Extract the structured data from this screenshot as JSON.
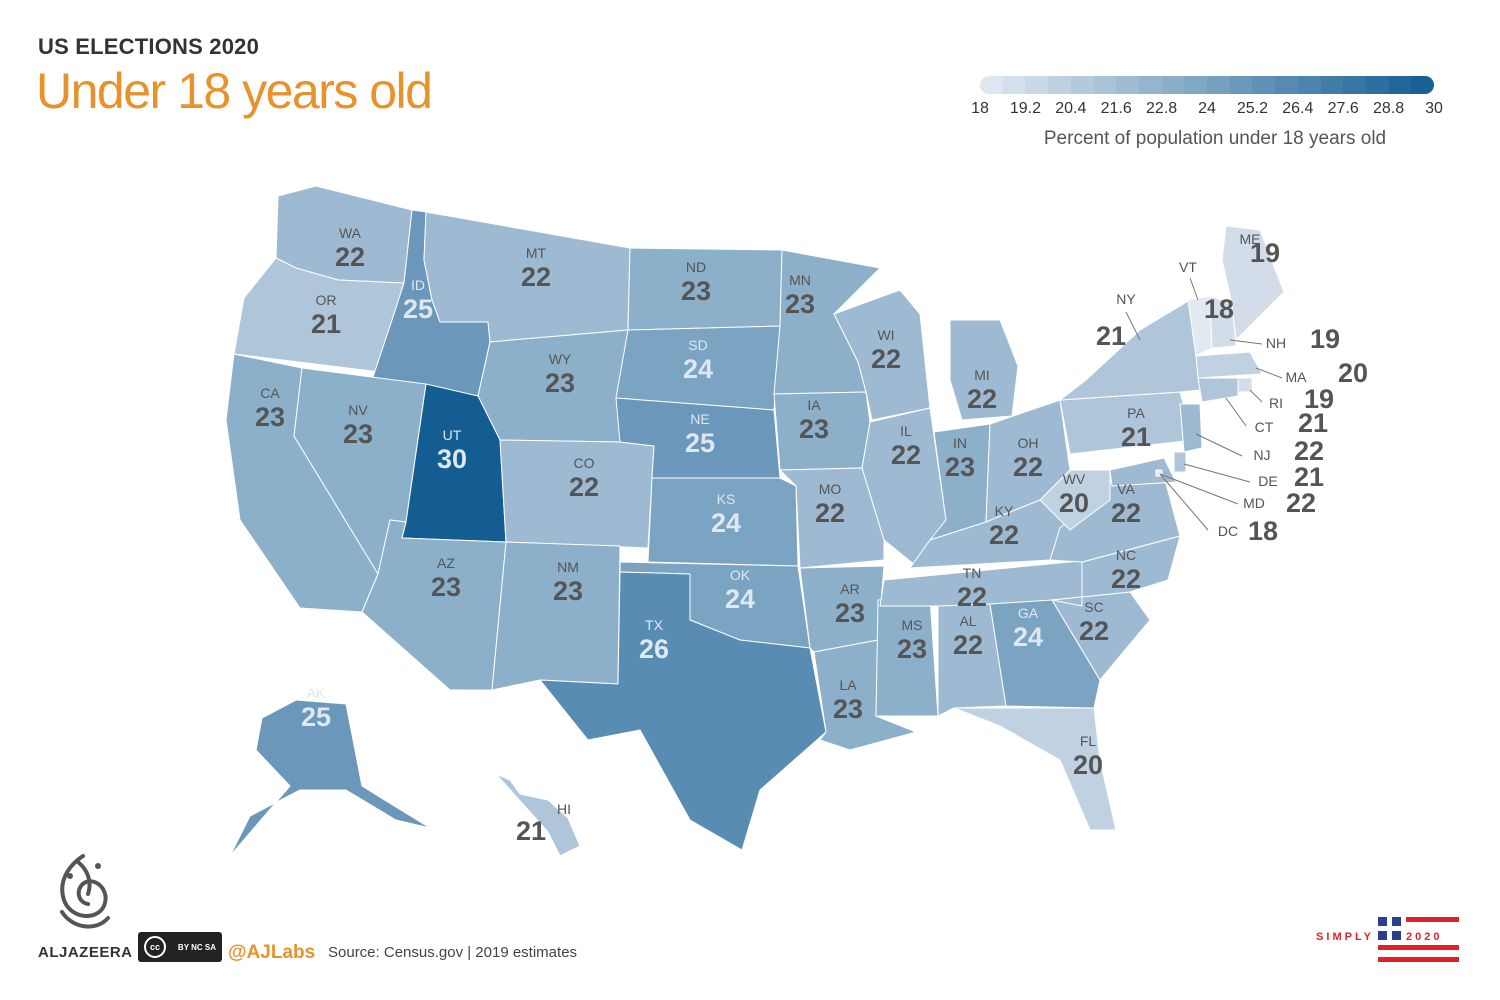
{
  "header": {
    "kicker": "US ELECTIONS 2020",
    "title": "Under 18 years old"
  },
  "legend": {
    "ticks": [
      "18",
      "19.2",
      "20.4",
      "21.6",
      "22.8",
      "24",
      "25.2",
      "26.4",
      "27.6",
      "28.8",
      "30"
    ],
    "caption": "Percent of population under 18 years old",
    "min_color": "#e3e9f1",
    "max_color": "#135d93",
    "range": [
      18,
      30
    ]
  },
  "chart_data": {
    "type": "choropleth",
    "range": [
      18,
      30
    ],
    "states": [
      {
        "abbr": "WA",
        "value": 22
      },
      {
        "abbr": "OR",
        "value": 21
      },
      {
        "abbr": "CA",
        "value": 23
      },
      {
        "abbr": "ID",
        "value": 25
      },
      {
        "abbr": "NV",
        "value": 23
      },
      {
        "abbr": "MT",
        "value": 22
      },
      {
        "abbr": "WY",
        "value": 23
      },
      {
        "abbr": "UT",
        "value": 30
      },
      {
        "abbr": "AZ",
        "value": 23
      },
      {
        "abbr": "CO",
        "value": 22
      },
      {
        "abbr": "NM",
        "value": 23
      },
      {
        "abbr": "ND",
        "value": 23
      },
      {
        "abbr": "SD",
        "value": 24
      },
      {
        "abbr": "NE",
        "value": 25
      },
      {
        "abbr": "KS",
        "value": 24
      },
      {
        "abbr": "OK",
        "value": 24
      },
      {
        "abbr": "TX",
        "value": 26
      },
      {
        "abbr": "MN",
        "value": 23
      },
      {
        "abbr": "IA",
        "value": 23
      },
      {
        "abbr": "MO",
        "value": 22
      },
      {
        "abbr": "AR",
        "value": 23
      },
      {
        "abbr": "LA",
        "value": 23
      },
      {
        "abbr": "WI",
        "value": 22
      },
      {
        "abbr": "IL",
        "value": 22
      },
      {
        "abbr": "MS",
        "value": 23
      },
      {
        "abbr": "MI",
        "value": 22
      },
      {
        "abbr": "IN",
        "value": 23
      },
      {
        "abbr": "OH",
        "value": 22
      },
      {
        "abbr": "KY",
        "value": 22
      },
      {
        "abbr": "TN",
        "value": 22
      },
      {
        "abbr": "AL",
        "value": 22
      },
      {
        "abbr": "GA",
        "value": 24
      },
      {
        "abbr": "FL",
        "value": 20
      },
      {
        "abbr": "SC",
        "value": 22
      },
      {
        "abbr": "NC",
        "value": 22
      },
      {
        "abbr": "VA",
        "value": 22
      },
      {
        "abbr": "WV",
        "value": 20
      },
      {
        "abbr": "PA",
        "value": 21
      },
      {
        "abbr": "NY",
        "value": 21
      },
      {
        "abbr": "VT",
        "value": 18
      },
      {
        "abbr": "NH",
        "value": 19
      },
      {
        "abbr": "ME",
        "value": 19
      },
      {
        "abbr": "MA",
        "value": 20
      },
      {
        "abbr": "RI",
        "value": 19
      },
      {
        "abbr": "CT",
        "value": 21
      },
      {
        "abbr": "NJ",
        "value": 22
      },
      {
        "abbr": "DE",
        "value": 21
      },
      {
        "abbr": "MD",
        "value": 22
      },
      {
        "abbr": "DC",
        "value": 18
      },
      {
        "abbr": "AK",
        "value": 25
      },
      {
        "abbr": "HI",
        "value": 21
      }
    ]
  },
  "footer": {
    "brand": "ALJAZEERA",
    "license": "BY NC SA",
    "handle": "@AJLabs",
    "source": "Source: Census.gov | 2019 estimates",
    "simply_left": "SIMPLY",
    "simply_right": "2020",
    "logo_icon": "aljazeera-logo-icon",
    "cc_icon": "creative-commons-icon"
  }
}
